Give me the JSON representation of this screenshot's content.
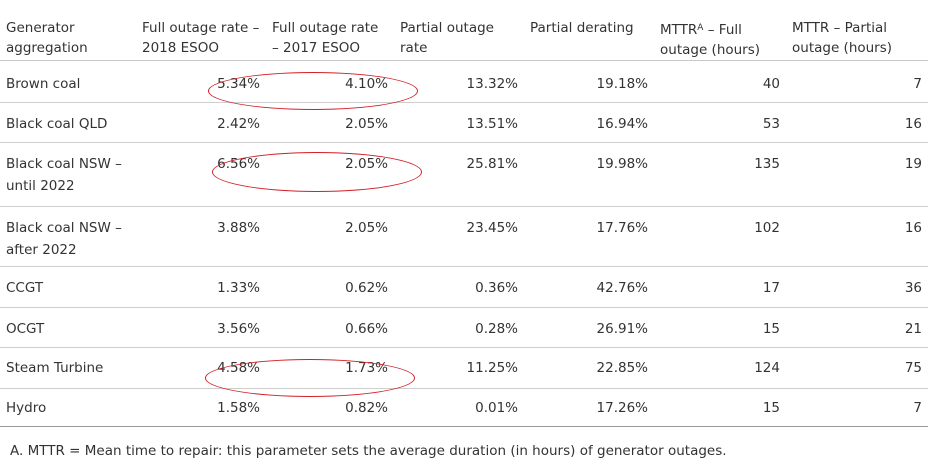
{
  "table": {
    "headers": [
      "Generator aggregation",
      "Full outage rate – 2018 ESOO",
      "Full outage rate – 2017 ESOO",
      "Partial outage rate",
      "Partial derating",
      "MTTR",
      "MTTR – Partial outage (hours)"
    ],
    "mttr_full_sup": "A",
    "mttr_full_rest": " – Full outage (hours)",
    "rows": [
      [
        "Brown coal",
        "5.34%",
        "4.10%",
        "13.32%",
        "19.18%",
        "40",
        "7"
      ],
      [
        "Black coal QLD",
        "2.42%",
        "2.05%",
        "13.51%",
        "16.94%",
        "53",
        "16"
      ],
      [
        "Black coal NSW – until 2022",
        "6.56%",
        "2.05%",
        "25.81%",
        "19.98%",
        "135",
        "19"
      ],
      [
        "Black coal NSW – after 2022",
        "3.88%",
        "2.05%",
        "23.45%",
        "17.76%",
        "102",
        "16"
      ],
      [
        "CCGT",
        "1.33%",
        "0.62%",
        "0.36%",
        "42.76%",
        "17",
        "36"
      ],
      [
        "OCGT",
        "3.56%",
        "0.66%",
        "0.28%",
        "26.91%",
        "15",
        "21"
      ],
      [
        "Steam Turbine",
        "4.58%",
        "1.73%",
        "11.25%",
        "22.85%",
        "124",
        "75"
      ],
      [
        "Hydro",
        "1.58%",
        "0.82%",
        "0.01%",
        "17.26%",
        "15",
        "7"
      ]
    ]
  },
  "footnote": "A. MTTR = Mean time to repair: this parameter sets the average duration (in hours) of generator outages.",
  "colors": {
    "highlight": "#d21f26",
    "text": "#333333",
    "rule": "#cfcfcf"
  }
}
